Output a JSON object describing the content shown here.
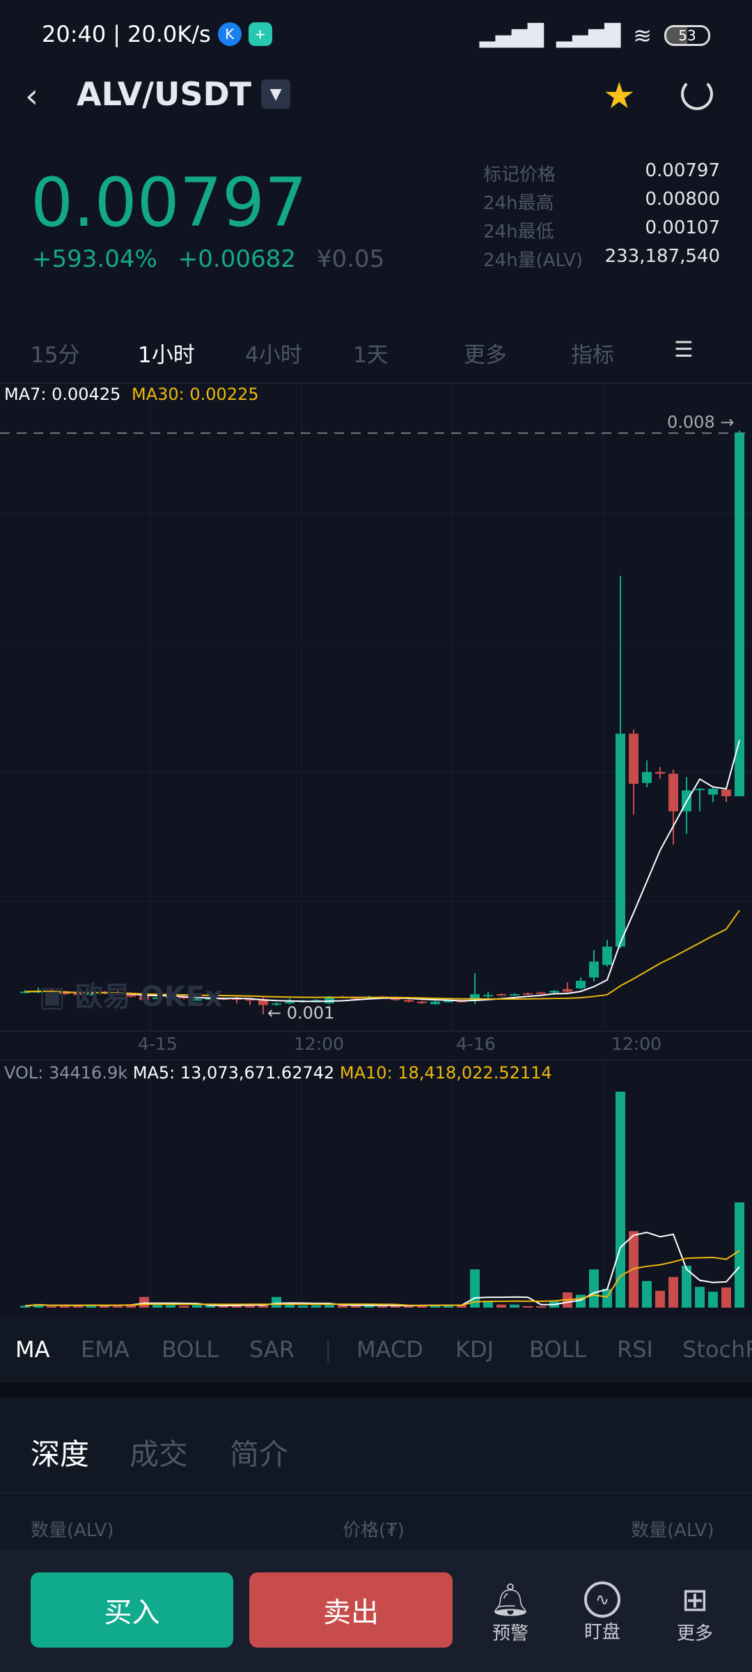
{
  "status_bar": {
    "time": "20:40",
    "speed": "20.0K/s",
    "battery": "53"
  },
  "header": {
    "pair": "ALV/USDT"
  },
  "ticker": {
    "last_price": "0.00797",
    "change_pct": "+593.04%",
    "change_abs": "+0.00682",
    "cny": "¥0.05",
    "stats": [
      {
        "label": "标记价格",
        "value": "0.00797"
      },
      {
        "label": "24h最高",
        "value": "0.00800"
      },
      {
        "label": "24h最低",
        "value": "0.00107"
      },
      {
        "label": "24h量(ALV)",
        "value": "233,187,540"
      }
    ]
  },
  "timeframes": [
    "15分",
    "1小时",
    "4小时",
    "1天",
    "更多",
    "指标"
  ],
  "active_timeframe": "1小时",
  "indicators": {
    "main": [
      "MA",
      "EMA",
      "BOLL",
      "SAR"
    ],
    "sub": [
      "MACD",
      "KDJ",
      "BOLL",
      "RSI",
      "StochRSI"
    ],
    "active": "MA"
  },
  "depth_tabs": [
    "深度",
    "成交",
    "简介"
  ],
  "depth_columns": [
    "数量(ALV)",
    "价格(₮)",
    "数量(ALV)"
  ],
  "actions": {
    "buy": "买入",
    "sell": "卖出",
    "alert": "预警",
    "watch": "盯盘",
    "more": "更多"
  },
  "colors": {
    "up": "#10a98a",
    "down": "#c94c4c",
    "ma7": "#ffffff",
    "ma30": "#f0b90b",
    "bg": "#0f1420"
  },
  "chart_data": {
    "type": "candlestick",
    "interval": "1h",
    "ma_legend": {
      "ma7": "MA7: 0.00425",
      "ma30": "MA30: 0.00225"
    },
    "current_price_label": "0.008 →",
    "low_label": "← 0.001",
    "x_tick_labels": [
      {
        "index": 10,
        "label": "4-15"
      },
      {
        "index": 22,
        "label": "12:00"
      },
      {
        "index": 34,
        "label": "4-16"
      },
      {
        "index": 46,
        "label": "12:00"
      }
    ],
    "ylim": [
      0.001,
      0.008
    ],
    "candles_ohlc": [
      [
        0.00128,
        0.0013,
        0.00126,
        0.00128
      ],
      [
        0.00127,
        0.00133,
        0.00126,
        0.00129
      ],
      [
        0.00129,
        0.00131,
        0.00127,
        0.00128
      ],
      [
        0.00128,
        0.00129,
        0.00124,
        0.00125
      ],
      [
        0.00126,
        0.00128,
        0.00123,
        0.00124
      ],
      [
        0.00124,
        0.00128,
        0.00123,
        0.00127
      ],
      [
        0.00128,
        0.00129,
        0.00125,
        0.00126
      ],
      [
        0.00127,
        0.00129,
        0.00124,
        0.00125
      ],
      [
        0.00125,
        0.00127,
        0.00121,
        0.00122
      ],
      [
        0.00123,
        0.00124,
        0.00117,
        0.00118
      ],
      [
        0.0012,
        0.00122,
        0.00118,
        0.00121
      ],
      [
        0.0012,
        0.00123,
        0.00119,
        0.00122
      ],
      [
        0.00122,
        0.00123,
        0.00119,
        0.0012
      ],
      [
        0.00118,
        0.0012,
        0.00117,
        0.00119
      ],
      [
        0.00119,
        0.00121,
        0.00118,
        0.0012
      ],
      [
        0.0012,
        0.00121,
        0.00118,
        0.00119
      ],
      [
        0.0012,
        0.00122,
        0.00114,
        0.00119
      ],
      [
        0.00119,
        0.00121,
        0.00112,
        0.00118
      ],
      [
        0.00119,
        0.00122,
        0.00101,
        0.00112
      ],
      [
        0.00113,
        0.00115,
        0.00111,
        0.00114
      ],
      [
        0.00114,
        0.0012,
        0.00113,
        0.00116
      ],
      [
        0.00116,
        0.00118,
        0.00115,
        0.00117
      ],
      [
        0.00117,
        0.00119,
        0.00116,
        0.00118
      ],
      [
        0.00114,
        0.00123,
        0.00113,
        0.00122
      ],
      [
        0.00122,
        0.00123,
        0.0012,
        0.00121
      ],
      [
        0.00121,
        0.00122,
        0.00119,
        0.0012
      ],
      [
        0.00121,
        0.00123,
        0.0012,
        0.00122
      ],
      [
        0.00122,
        0.00123,
        0.0012,
        0.00121
      ],
      [
        0.00121,
        0.00122,
        0.00117,
        0.00118
      ],
      [
        0.00118,
        0.00119,
        0.00115,
        0.00116
      ],
      [
        0.00116,
        0.00117,
        0.00113,
        0.00115
      ],
      [
        0.00113,
        0.00117,
        0.00112,
        0.00116
      ],
      [
        0.00116,
        0.00118,
        0.00115,
        0.00117
      ],
      [
        0.00117,
        0.00118,
        0.00115,
        0.00116
      ],
      [
        0.00117,
        0.0015,
        0.00113,
        0.00125
      ],
      [
        0.00123,
        0.00128,
        0.0012,
        0.00124
      ],
      [
        0.00125,
        0.00126,
        0.00123,
        0.00124
      ],
      [
        0.00124,
        0.00126,
        0.00123,
        0.00125
      ],
      [
        0.00126,
        0.00127,
        0.00124,
        0.00125
      ],
      [
        0.00127,
        0.00128,
        0.00125,
        0.00126
      ],
      [
        0.00127,
        0.0013,
        0.00126,
        0.00129
      ],
      [
        0.00131,
        0.00139,
        0.00127,
        0.00128
      ],
      [
        0.00132,
        0.00145,
        0.00131,
        0.00141
      ],
      [
        0.00145,
        0.00178,
        0.0014,
        0.00164
      ],
      [
        0.0016,
        0.0019,
        0.00158,
        0.00182
      ],
      [
        0.00182,
        0.00626,
        0.0018,
        0.00437
      ],
      [
        0.00437,
        0.00442,
        0.0034,
        0.00377
      ],
      [
        0.00378,
        0.00405,
        0.00373,
        0.00391
      ],
      [
        0.00391,
        0.00397,
        0.00383,
        0.00389
      ],
      [
        0.00389,
        0.00394,
        0.00304,
        0.00344
      ],
      [
        0.00344,
        0.00385,
        0.00317,
        0.00369
      ],
      [
        0.0037,
        0.00372,
        0.00344,
        0.00371
      ],
      [
        0.00364,
        0.00372,
        0.00355,
        0.00371
      ],
      [
        0.0037,
        0.00371,
        0.00355,
        0.00362
      ],
      [
        0.00362,
        0.008,
        0.00362,
        0.00797
      ]
    ],
    "volume_legend": {
      "vol": "VOL: 34416.9k",
      "ma5": "MA5: 13,073,671.62742",
      "ma10": "MA10: 18,418,022.52114"
    },
    "volumes": [
      600000,
      1200000,
      500000,
      800000,
      600000,
      1000000,
      700000,
      900000,
      1100000,
      3500000,
      1000000,
      800000,
      600000,
      900000,
      700000,
      600000,
      800000,
      1200000,
      900000,
      3500000,
      1100000,
      700000,
      800000,
      900000,
      1000000,
      600000,
      700000,
      500000,
      800000,
      600000,
      900000,
      1000000,
      700000,
      800000,
      12500000,
      2000000,
      1000000,
      1000000,
      500000,
      500000,
      2000000,
      5000000,
      4200000,
      12500000,
      6100000,
      70600000,
      25000000,
      8700000,
      5500000,
      10000000,
      13700000,
      6800000,
      5200000,
      6600000,
      34416900
    ]
  }
}
